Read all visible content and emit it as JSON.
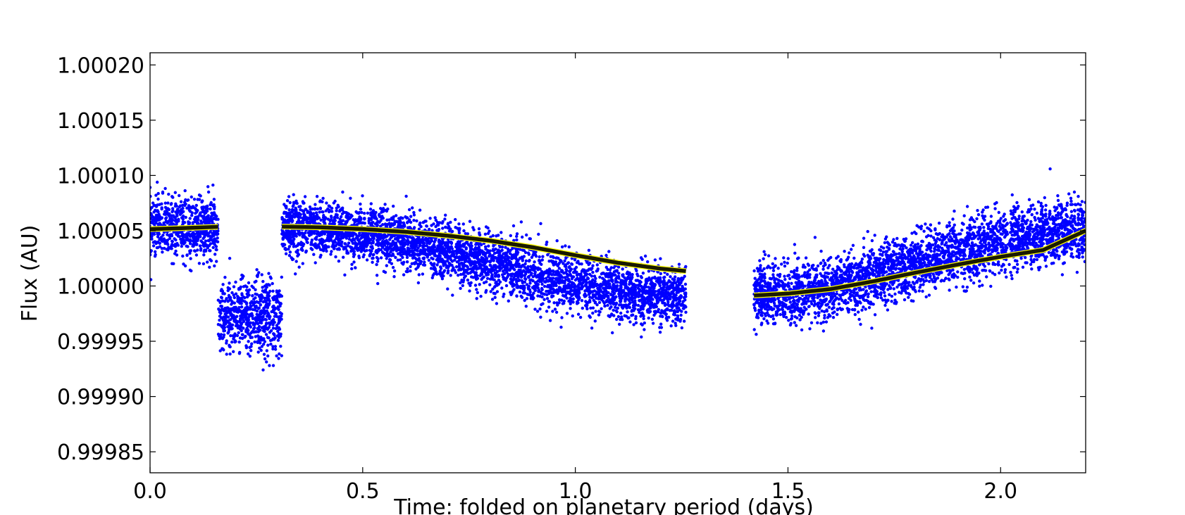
{
  "chart_data": {
    "type": "scatter",
    "title": "",
    "xlabel": "Time: folded on planetary period (days)",
    "ylabel": "Flux (AU)",
    "xlim": [
      0.0,
      2.2
    ],
    "ylim": [
      0.999831,
      1.000211
    ],
    "xticks": [
      0.0,
      0.5,
      1.0,
      1.5,
      2.0
    ],
    "xtick_labels": [
      "0.0",
      "0.5",
      "1.0",
      "1.5",
      "2.0"
    ],
    "yticks": [
      0.99985,
      0.9999,
      0.99995,
      1.0,
      1.00005,
      1.0001,
      1.00015,
      1.0002
    ],
    "ytick_labels": [
      "0.99985",
      "0.99990",
      "0.99995",
      "1.00000",
      "1.00005",
      "1.00010",
      "1.00015",
      "1.00020"
    ],
    "grid": false,
    "legend": "none",
    "colors": {
      "data": "#0000ff",
      "model": "#1a1a00",
      "model_marker": "#ffff00"
    },
    "series": [
      {
        "kind": "data",
        "segments": [
          {
            "x_range": [
              0.0,
              0.16
            ],
            "mean": 1.0000526,
            "spread": 3.2e-05,
            "note_shape": "band"
          },
          {
            "x_range": [
              0.16,
              0.31
            ],
            "mean": 0.999972,
            "spread": 4e-05,
            "note_shape": "band"
          },
          {
            "x_range": [
              0.31,
              1.26
            ],
            "mean_start": 1.000053,
            "mean_end": 0.999991,
            "spread": 3e-05,
            "note_shape": "band"
          },
          {
            "x_range": [
              1.42,
              2.2
            ],
            "mean_start": 0.999991,
            "mean_end": 1.00005,
            "spread": 3.2e-05,
            "note_shape": "band"
          }
        ]
      },
      {
        "kind": "model",
        "x": [
          0.0,
          0.05,
          0.1,
          0.16,
          0.31,
          0.4,
          0.5,
          0.6,
          0.7,
          0.8,
          0.9,
          1.0,
          1.1,
          1.2,
          1.26,
          1.42,
          1.5,
          1.6,
          1.7,
          1.8,
          1.9,
          2.0,
          2.1,
          2.2
        ],
        "y": [
          1.0000515,
          1.000052,
          1.0000527,
          1.0000535,
          1.0000537,
          1.0000531,
          1.0000515,
          1.000049,
          1.0000455,
          1.000041,
          1.000035,
          1.0000278,
          1.000021,
          1.0000157,
          1.0000135,
          0.9999914,
          0.9999931,
          0.9999972,
          1.0000042,
          1.000012,
          1.0000195,
          1.0000265,
          1.0000325,
          1.00005
        ]
      }
    ]
  }
}
